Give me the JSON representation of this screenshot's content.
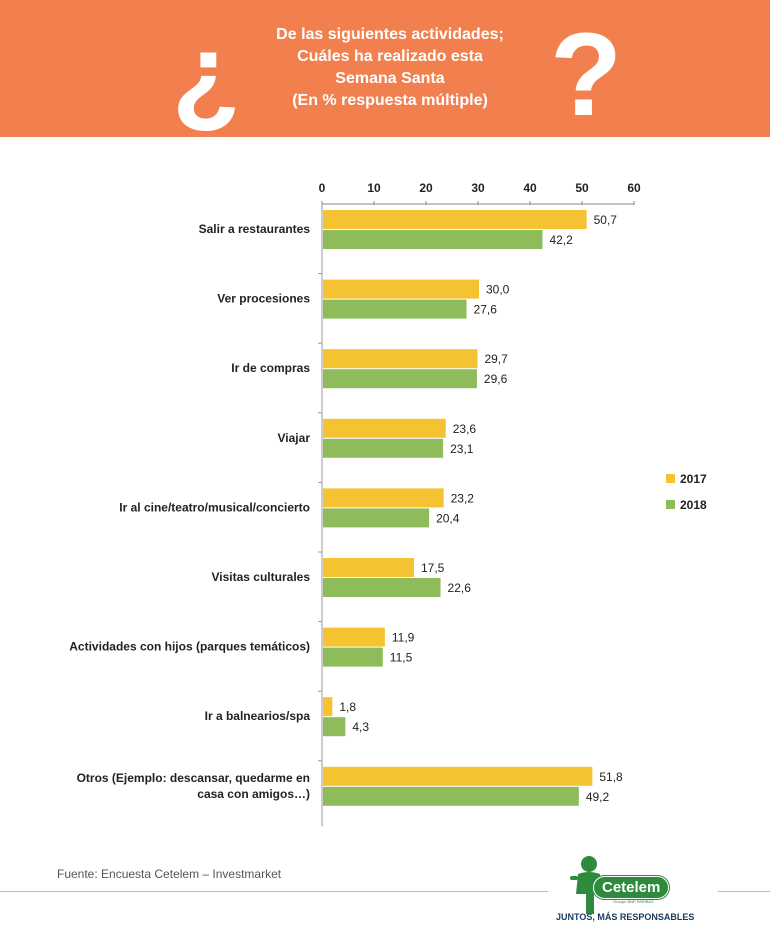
{
  "header": {
    "open_mark": "¿",
    "close_mark": "?",
    "title_lines": [
      "De las siguientes actividades;",
      "Cuáles ha realizado esta",
      "Semana Santa",
      "(En % respuesta múltiple)"
    ],
    "background_color": "#f2804f"
  },
  "chart_data": {
    "type": "bar",
    "orientation": "horizontal",
    "categories": [
      "Salir a restaurantes",
      "Ver procesiones",
      "Ir de compras",
      "Viajar",
      "Ir al cine/teatro/musical/concierto",
      "Visitas culturales",
      "Actividades con hijos (parques temáticos)",
      "Ir a balnearios/spa",
      [
        "Otros (Ejemplo: descansar, quedarme en",
        "casa con amigos…)"
      ]
    ],
    "series": [
      {
        "name": "2017",
        "color": "#f5c232",
        "values": [
          50.7,
          30.0,
          29.7,
          23.6,
          23.2,
          17.5,
          11.9,
          1.8,
          51.8
        ],
        "labels": [
          "50,7",
          "30,0",
          "29,7",
          "23,6",
          "23,2",
          "17,5",
          "11,9",
          "1,8",
          "51,8"
        ]
      },
      {
        "name": "2018",
        "color": "#8fbc5a",
        "values": [
          42.2,
          27.6,
          29.6,
          23.1,
          20.4,
          22.6,
          11.5,
          4.3,
          49.2
        ],
        "labels": [
          "42,2",
          "27,6",
          "29,6",
          "23,1",
          "20,4",
          "22,6",
          "11,5",
          "4,3",
          "49,2"
        ]
      }
    ],
    "xlim": [
      0,
      60
    ],
    "xticks": [
      "0",
      "10",
      "20",
      "30",
      "40",
      "50",
      "60"
    ],
    "axis_position": "top",
    "legend_position": "right",
    "grid": false
  },
  "footer": {
    "source": "Fuente: Encuesta Cetelem – Investmarket",
    "logo_text": "Cetelem",
    "logo_subtext": "Groupe BNP PARIBAS",
    "slogan": "JUNTOS, MÁS RESPONSABLES"
  }
}
